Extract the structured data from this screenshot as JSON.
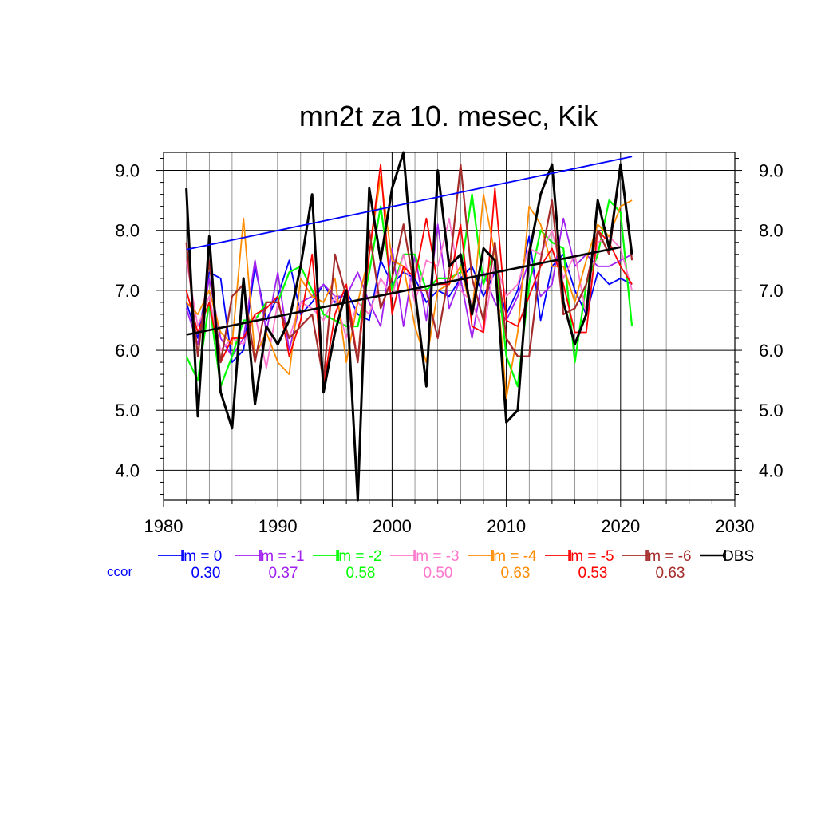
{
  "chart_data": {
    "type": "line",
    "title": "mn2t za 10. mesec, Kik",
    "xlabel": "",
    "ylabel": "",
    "xlim": [
      1980,
      2030
    ],
    "ylim": [
      3.5,
      9.3
    ],
    "xticks": [
      1980,
      1990,
      2000,
      2010,
      2020,
      2030
    ],
    "yticks": [
      4.0,
      5.0,
      6.0,
      7.0,
      8.0,
      9.0
    ],
    "ytick_labels": [
      "4.0",
      "5.0",
      "6.0",
      "7.0",
      "8.0",
      "9.0"
    ],
    "grid": true,
    "x": [
      1982,
      1983,
      1984,
      1985,
      1986,
      1987,
      1988,
      1989,
      1990,
      1991,
      1992,
      1993,
      1994,
      1995,
      1996,
      1997,
      1998,
      1999,
      2000,
      2001,
      2002,
      2003,
      2004,
      2005,
      2006,
      2007,
      2008,
      2009,
      2010,
      2011,
      2012,
      2013,
      2014,
      2015,
      2016,
      2017,
      2018,
      2019,
      2020,
      2021
    ],
    "series": [
      {
        "name": "lm = 0",
        "color": "#0000ff",
        "width": 1.8,
        "values": [
          6.8,
          6.2,
          7.3,
          7.2,
          5.8,
          6.0,
          7.4,
          6.5,
          6.9,
          7.5,
          6.6,
          6.8,
          7.1,
          6.8,
          7.0,
          6.6,
          6.5,
          7.5,
          7.1,
          7.3,
          7.2,
          6.8,
          7.0,
          6.9,
          7.2,
          7.4,
          6.9,
          7.3,
          6.6,
          7.0,
          7.9,
          6.5,
          7.4,
          7.6,
          7.0,
          6.6,
          7.3,
          7.1,
          7.2,
          7.1
        ]
      },
      {
        "name": "lm = -1",
        "color": "#a020f0",
        "width": 1.8,
        "values": [
          6.7,
          6.1,
          7.2,
          6.2,
          5.9,
          6.2,
          7.5,
          6.3,
          7.3,
          6.0,
          6.8,
          6.9,
          7.1,
          6.9,
          6.9,
          7.3,
          6.8,
          6.4,
          7.7,
          6.4,
          7.6,
          6.5,
          8.1,
          6.7,
          7.2,
          6.2,
          7.3,
          6.8,
          6.5,
          6.9,
          7.5,
          6.9,
          7.1,
          8.2,
          7.4,
          7.6,
          7.4,
          7.4,
          7.5,
          7.6
        ]
      },
      {
        "name": "lm = -2",
        "color": "#00ff00",
        "width": 2.2,
        "values": [
          5.9,
          5.5,
          6.8,
          5.4,
          5.9,
          6.5,
          6.5,
          6.8,
          6.8,
          7.3,
          7.4,
          7.0,
          6.6,
          6.5,
          6.4,
          6.4,
          7.3,
          8.4,
          7.0,
          7.6,
          7.6,
          7.0,
          7.2,
          7.2,
          7.3,
          8.6,
          7.1,
          7.7,
          5.9,
          5.4,
          7.1,
          8.0,
          7.8,
          7.7,
          5.8,
          7.1,
          7.6,
          8.5,
          8.3,
          6.4
        ]
      },
      {
        "name": "lm = -3",
        "color": "#ff77cc",
        "width": 1.8,
        "values": [
          7.5,
          6.4,
          6.9,
          6.0,
          6.2,
          6.1,
          6.6,
          5.7,
          6.8,
          6.2,
          6.8,
          6.7,
          6.5,
          6.9,
          6.2,
          6.8,
          6.6,
          7.2,
          6.9,
          7.6,
          6.8,
          7.5,
          7.4,
          8.2,
          7.0,
          6.8,
          6.3,
          7.5,
          6.9,
          7.1,
          7.7,
          7.6,
          8.0,
          7.2,
          7.6,
          6.6,
          7.8,
          7.9,
          7.7,
          7.0
        ]
      },
      {
        "name": "lm = -4",
        "color": "#ff8c00",
        "width": 1.8,
        "values": [
          6.8,
          6.6,
          7.0,
          6.3,
          6.1,
          8.2,
          5.9,
          6.3,
          5.8,
          5.6,
          7.2,
          6.9,
          6.8,
          7.2,
          5.8,
          6.8,
          7.6,
          8.9,
          7.5,
          7.4,
          6.4,
          5.8,
          7.0,
          7.1,
          7.4,
          6.6,
          8.6,
          7.6,
          5.2,
          6.3,
          8.4,
          8.1,
          7.4,
          7.4,
          6.8,
          7.5,
          8.1,
          7.9,
          8.4,
          8.5
        ]
      },
      {
        "name": "lm = -5",
        "color": "#ff0000",
        "width": 1.8,
        "values": [
          7.0,
          6.3,
          6.8,
          5.8,
          6.2,
          6.2,
          6.6,
          6.7,
          6.9,
          5.9,
          6.5,
          7.6,
          5.4,
          6.6,
          7.1,
          5.8,
          7.6,
          9.1,
          6.6,
          7.4,
          7.2,
          8.2,
          7.1,
          7.1,
          8.1,
          6.4,
          6.3,
          8.7,
          6.5,
          6.4,
          6.9,
          7.4,
          7.7,
          7.1,
          6.3,
          6.3,
          8.0,
          7.8,
          7.4,
          7.1
        ]
      },
      {
        "name": "lm = -6",
        "color": "#a52a2a",
        "width": 2.2,
        "values": [
          7.8,
          5.9,
          7.5,
          5.8,
          6.9,
          7.1,
          5.8,
          6.8,
          6.8,
          6.2,
          6.4,
          6.6,
          5.5,
          7.6,
          6.9,
          5.8,
          8.0,
          6.7,
          7.2,
          8.1,
          7.0,
          7.0,
          6.2,
          7.3,
          9.1,
          7.2,
          6.5,
          7.8,
          6.2,
          5.9,
          5.9,
          7.5,
          8.5,
          6.6,
          6.7,
          7.1,
          8.0,
          7.6,
          9.1,
          7.5
        ]
      },
      {
        "name": "OBS",
        "color": "#000000",
        "width": 3.0,
        "values": [
          8.7,
          4.9,
          7.9,
          5.3,
          4.7,
          7.2,
          5.1,
          6.4,
          6.1,
          6.5,
          7.4,
          8.6,
          5.3,
          6.3,
          7.0,
          3.5,
          8.7,
          7.5,
          8.7,
          9.3,
          7.0,
          5.4,
          9.0,
          7.4,
          7.6,
          6.6,
          7.7,
          7.5,
          4.8,
          5.0,
          7.6,
          8.6,
          9.1,
          6.8,
          6.1,
          6.6,
          8.5,
          7.7,
          9.1,
          7.6
        ]
      }
    ],
    "trend_lines": [
      {
        "name": "lm = 0 trend",
        "color": "#0000ff",
        "width": 1.8,
        "x": [
          1982,
          2021
        ],
        "values": [
          7.68,
          9.23
        ]
      },
      {
        "name": "OBS trend",
        "color": "#000000",
        "width": 2.6,
        "x": [
          1982,
          2020
        ],
        "values": [
          6.26,
          7.72
        ]
      }
    ],
    "legend": {
      "placement": "bottom",
      "ccor_label": "ccor",
      "ccor_color": "#0000ff",
      "entries": [
        {
          "label": "lm = 0",
          "color": "#0000ff",
          "ccor": "0.30"
        },
        {
          "label": "lm = -1",
          "color": "#a020f0",
          "ccor": "0.37"
        },
        {
          "label": "lm = -2",
          "color": "#00ff00",
          "ccor": "0.58"
        },
        {
          "label": "lm = -3",
          "color": "#ff77cc",
          "ccor": "0.50"
        },
        {
          "label": "lm = -4",
          "color": "#ff8c00",
          "ccor": "0.63"
        },
        {
          "label": "lm = -5",
          "color": "#ff0000",
          "ccor": "0.53"
        },
        {
          "label": "lm = -6",
          "color": "#a52a2a",
          "ccor": "0.63"
        },
        {
          "label": "OBS",
          "color": "#000000",
          "ccor": ""
        }
      ]
    }
  }
}
